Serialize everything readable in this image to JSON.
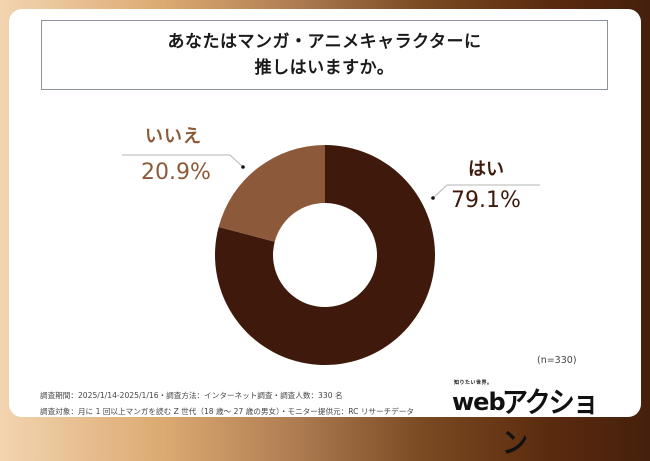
{
  "title": {
    "line1": "あなたはマンガ・アニメキャラクターに",
    "line2": "推しはいますか。"
  },
  "labels": {
    "no_name": "いいえ",
    "no_pct": "20.9%",
    "yes_name": "はい",
    "yes_pct": "79.1%"
  },
  "sample": "(n=330)",
  "footer": {
    "line1": "調査期間：2025/1/14-2025/1/16・調査方法：インターネット調査・調査人数：330 名",
    "line2": "調査対象：月に 1 回以上マンガを読む Z 世代（18 歳～ 27 歳の男女）・モニター提供元：RC リサーチデータ"
  },
  "logo": {
    "tagline": "知りたい世界。",
    "web": "web",
    "katakana": "アクション"
  },
  "colors": {
    "yes": "#3f1a0c",
    "no": "#8c5a3a",
    "leader": "#b5b5b5"
  },
  "chart_data": {
    "type": "pie",
    "subtype": "donut",
    "title": "あなたはマンガ・アニメキャラクターに推しはいますか。",
    "categories": [
      "はい",
      "いいえ"
    ],
    "values": [
      79.1,
      20.9
    ],
    "unit": "%",
    "colors": [
      "#3f1a0c",
      "#8c5a3a"
    ],
    "n": 330,
    "start_angle": "12 o'clock, clockwise",
    "legend": "none (direct labels with leader lines)"
  }
}
